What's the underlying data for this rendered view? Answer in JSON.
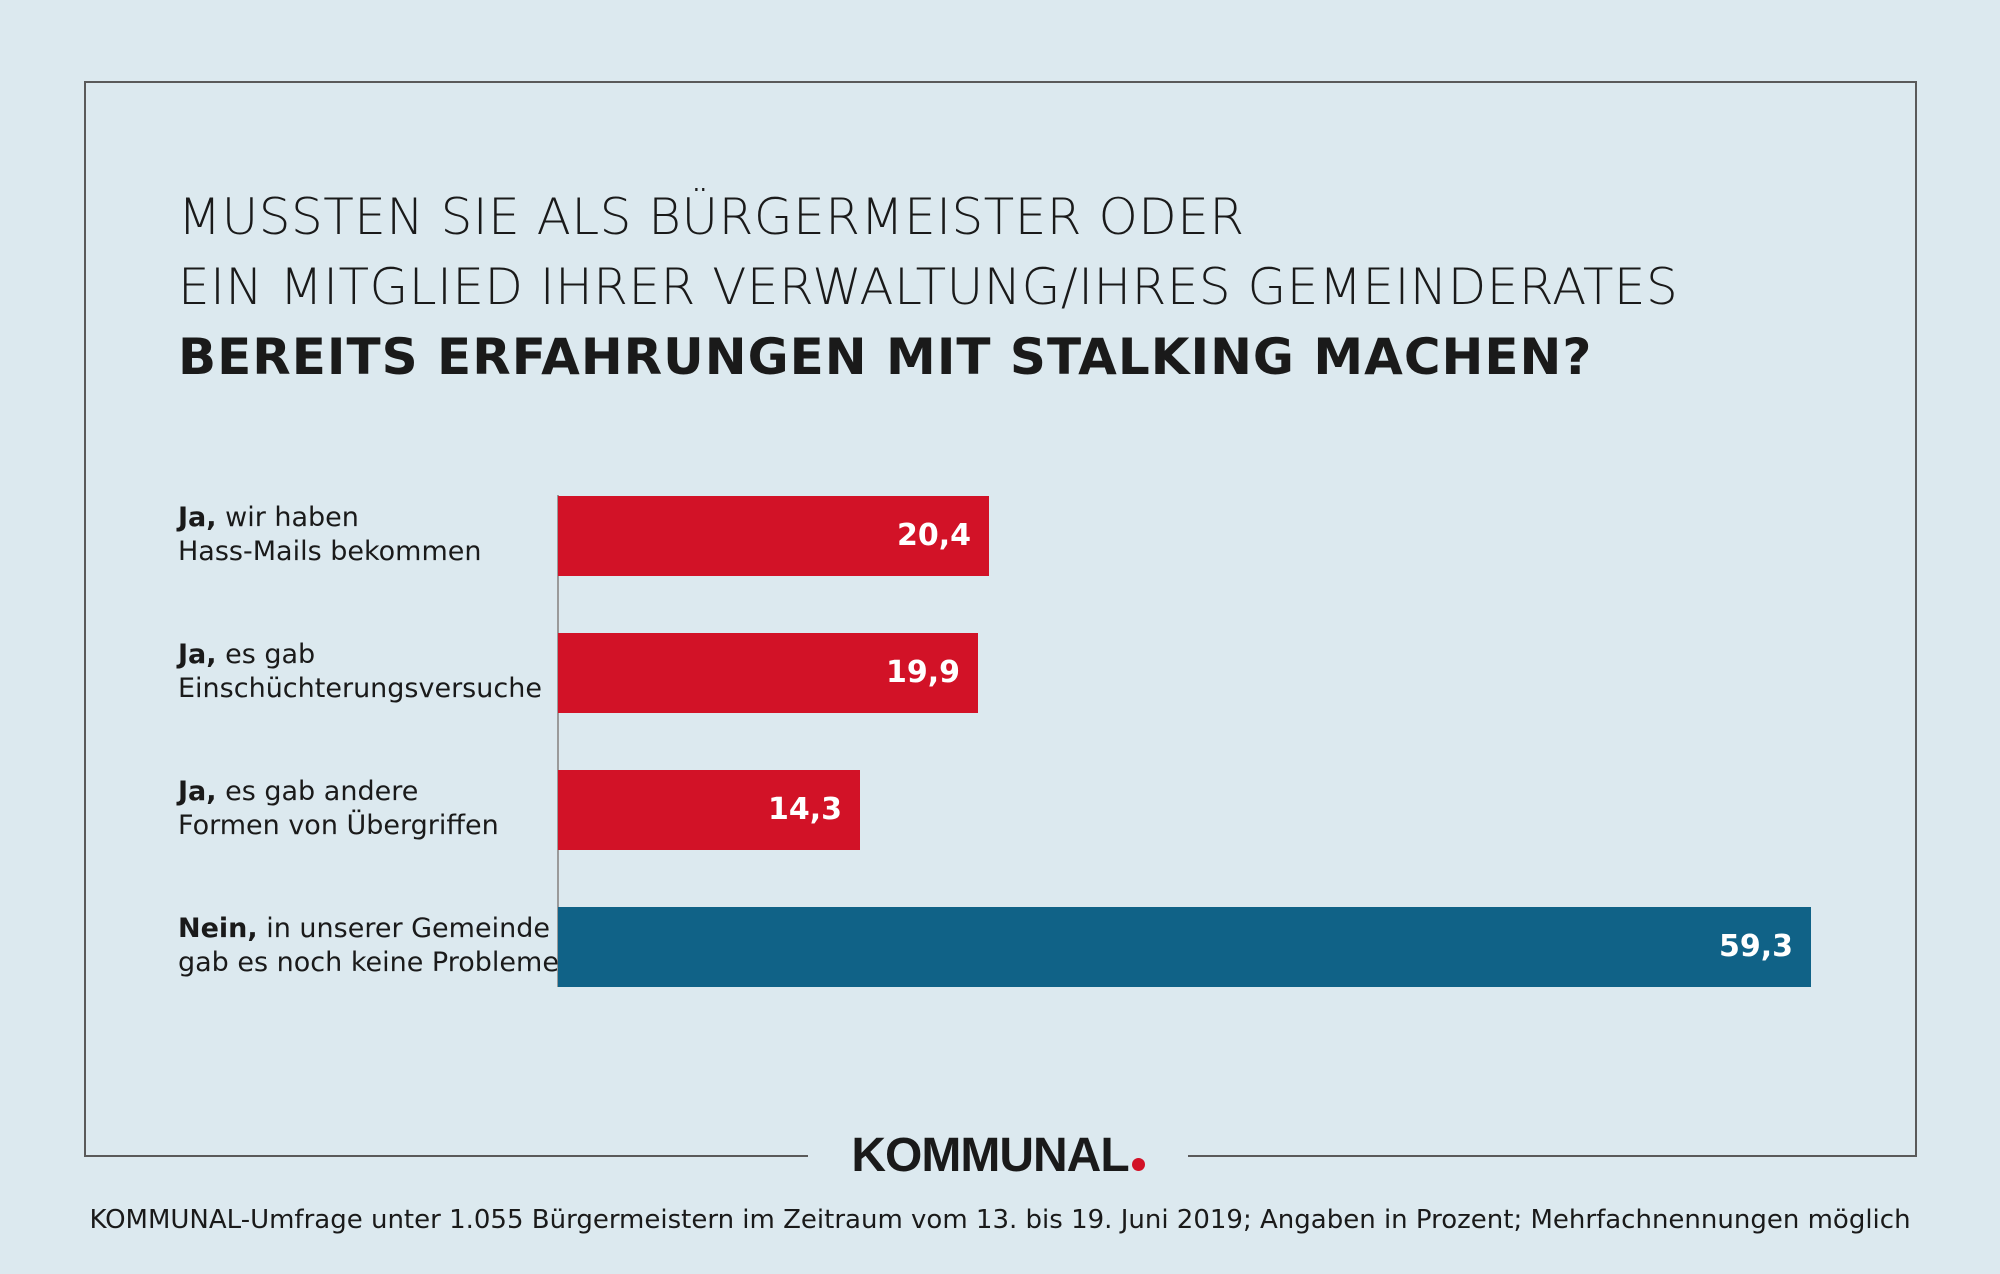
{
  "title": {
    "line1": "MUSSTEN SIE ALS BÜRGERMEISTER ODER",
    "line2": "EIN MITGLIED IHRER VERWALTUNG/IHRES GEMEINDERATES",
    "line3": "BEREITS ERFAHRUNGEN MIT STALKING MACHEN?"
  },
  "colors": {
    "background": "#dce9ef",
    "red": "#d21227",
    "blue": "#106287",
    "frame": "#5a5a5a",
    "axis": "#9a9a9a"
  },
  "chart_data": {
    "type": "bar",
    "orientation": "horizontal",
    "xlim": [
      0,
      59.3
    ],
    "grid": false,
    "categories": [
      {
        "lead": "Ja,",
        "rest": " wir haben",
        "line2": "Hass-Mails bekommen"
      },
      {
        "lead": "Ja,",
        "rest": " es gab",
        "line2": "Einschüchterungsversuche"
      },
      {
        "lead": "Ja,",
        "rest": " es gab andere",
        "line2": "Formen von Übergriffen"
      },
      {
        "lead": "Nein,",
        "rest": " in unserer Gemeinde",
        "line2": "gab es noch keine Probleme"
      }
    ],
    "values": [
      20.4,
      19.9,
      14.3,
      59.3
    ],
    "value_labels": [
      "20,4",
      "19,9",
      "14,3",
      "59,3"
    ],
    "bar_colors": [
      "#d21227",
      "#d21227",
      "#d21227",
      "#106287"
    ]
  },
  "logo": {
    "text": "KOMMUNAL",
    "dot_color": "#d21227"
  },
  "footer": {
    "note": "KOMMUNAL-Umfrage unter 1.055 Bürgermeistern im Zeitraum vom 13. bis 19. Juni 2019; Angaben in Prozent; Mehrfachnennungen möglich"
  }
}
